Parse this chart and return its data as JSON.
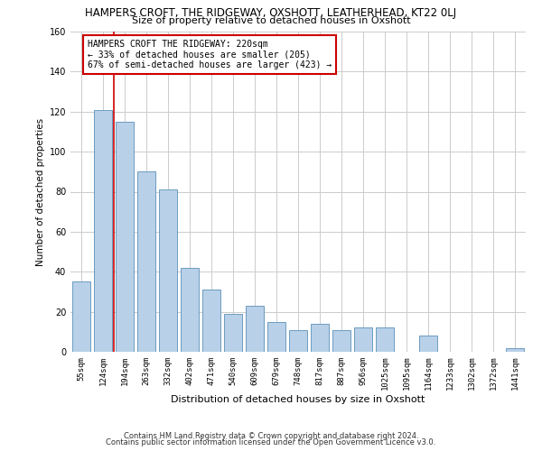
{
  "title": "HAMPERS CROFT, THE RIDGEWAY, OXSHOTT, LEATHERHEAD, KT22 0LJ",
  "subtitle": "Size of property relative to detached houses in Oxshott",
  "xlabel": "Distribution of detached houses by size in Oxshott",
  "ylabel": "Number of detached properties",
  "bar_labels": [
    "55sqm",
    "124sqm",
    "194sqm",
    "263sqm",
    "332sqm",
    "402sqm",
    "471sqm",
    "540sqm",
    "609sqm",
    "679sqm",
    "748sqm",
    "817sqm",
    "887sqm",
    "956sqm",
    "1025sqm",
    "1095sqm",
    "1164sqm",
    "1233sqm",
    "1302sqm",
    "1372sqm",
    "1441sqm"
  ],
  "bar_values": [
    35,
    121,
    115,
    90,
    81,
    42,
    31,
    19,
    23,
    15,
    11,
    14,
    11,
    12,
    12,
    0,
    8,
    0,
    0,
    0,
    2
  ],
  "bar_color": "#b8d0e8",
  "bar_edge_color": "#5a90b8",
  "vline_color": "#cc0000",
  "vline_position": 1.5,
  "annotation_title": "HAMPERS CROFT THE RIDGEWAY: 220sqm",
  "annotation_line1": "← 33% of detached houses are smaller (205)",
  "annotation_line2": "67% of semi-detached houses are larger (423) →",
  "annotation_box_color": "#cc0000",
  "ylim": [
    0,
    160
  ],
  "yticks": [
    0,
    20,
    40,
    60,
    80,
    100,
    120,
    140,
    160
  ],
  "footer1": "Contains HM Land Registry data © Crown copyright and database right 2024.",
  "footer2": "Contains public sector information licensed under the Open Government Licence v3.0."
}
